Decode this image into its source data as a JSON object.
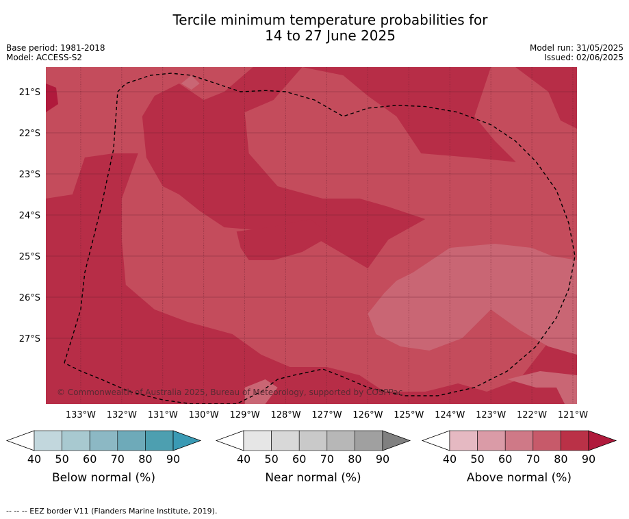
{
  "header": {
    "title_line1": "Tercile minimum temperature probabilities for",
    "title_line2": "14 to 27 June 2025",
    "base_period": "Base period: 1981-2018",
    "model": "Model: ACCESS-S2",
    "model_run": "Model run: 31/05/2025",
    "issued": "Issued: 02/06/2025"
  },
  "chart_data": {
    "type": "heatmap",
    "title": "Tercile minimum temperature probabilities for 14 to 27 June 2025",
    "x_ticks": [
      "133°W",
      "132°W",
      "131°W",
      "130°W",
      "129°W",
      "128°W",
      "127°W",
      "126°W",
      "125°W",
      "124°W",
      "123°W",
      "122°W",
      "121°W"
    ],
    "y_ticks": [
      "21°S",
      "22°S",
      "23°S",
      "24°S",
      "25°S",
      "26°S",
      "27°S"
    ],
    "xlim": [
      -133.85,
      -120.9
    ],
    "ylim": [
      -28.6,
      -20.4
    ],
    "levels_shown": [
      60,
      70,
      80,
      90
    ],
    "copyright": "© Commonwealth of Australia 2025, Bureau of Meteorology, supported by COSPPac",
    "eez_border": [
      [
        -133.4,
        -27.6
      ],
      [
        -133.0,
        -26.3
      ],
      [
        -132.9,
        -25.4
      ],
      [
        -132.5,
        -23.8
      ],
      [
        -132.2,
        -22.4
      ],
      [
        -132.1,
        -21.0
      ],
      [
        -131.9,
        -20.8
      ],
      [
        -131.3,
        -20.6
      ],
      [
        -130.8,
        -20.55
      ],
      [
        -130.3,
        -20.6
      ],
      [
        -129.7,
        -20.8
      ],
      [
        -129.1,
        -21.0
      ],
      [
        -128.5,
        -20.97
      ],
      [
        -128.0,
        -21.0
      ],
      [
        -127.3,
        -21.2
      ],
      [
        -126.6,
        -21.6
      ],
      [
        -126.0,
        -21.4
      ],
      [
        -125.3,
        -21.33
      ],
      [
        -124.6,
        -21.36
      ],
      [
        -123.8,
        -21.5
      ],
      [
        -123.0,
        -21.8
      ],
      [
        -122.4,
        -22.2
      ],
      [
        -121.9,
        -22.7
      ],
      [
        -121.4,
        -23.4
      ],
      [
        -121.1,
        -24.2
      ],
      [
        -120.95,
        -25.0
      ],
      [
        -121.1,
        -25.8
      ],
      [
        -121.4,
        -26.5
      ],
      [
        -121.9,
        -27.2
      ],
      [
        -122.6,
        -27.8
      ],
      [
        -123.4,
        -28.2
      ],
      [
        -124.3,
        -28.4
      ],
      [
        -125.1,
        -28.4
      ],
      [
        -126.0,
        -28.2
      ],
      [
        -126.7,
        -27.9
      ],
      [
        -127.1,
        -27.75
      ],
      [
        -127.8,
        -27.9
      ],
      [
        -128.2,
        -28.0
      ],
      [
        -128.6,
        -28.3
      ],
      [
        -129.2,
        -28.6
      ],
      [
        -129.8,
        -28.6
      ],
      [
        -130.3,
        -28.6
      ],
      [
        -131.0,
        -28.5
      ],
      [
        -131.8,
        -28.3
      ],
      [
        -132.5,
        -28.0
      ],
      [
        -133.0,
        -27.8
      ],
      [
        -133.4,
        -27.6
      ]
    ],
    "regions": [
      {
        "level": 70,
        "points": [
          [
            -133.85,
            -23.6
          ],
          [
            -133.2,
            -23.5
          ],
          [
            -132.9,
            -22.6
          ],
          [
            -132.2,
            -22.5
          ],
          [
            -131.6,
            -22.5
          ],
          [
            -132.0,
            -23.6
          ],
          [
            -132.0,
            -24.6
          ],
          [
            -131.9,
            -25.7
          ],
          [
            -131.2,
            -26.3
          ],
          [
            -130.4,
            -26.6
          ],
          [
            -129.3,
            -26.9
          ],
          [
            -128.6,
            -27.4
          ],
          [
            -127.9,
            -27.7
          ],
          [
            -127.0,
            -27.7
          ],
          [
            -126.2,
            -27.9
          ],
          [
            -125.6,
            -28.3
          ],
          [
            -124.6,
            -28.3
          ],
          [
            -123.8,
            -28.1
          ],
          [
            -123.1,
            -28.3
          ],
          [
            -122.3,
            -28.0
          ],
          [
            -121.6,
            -27.1
          ],
          [
            -120.9,
            -27.0
          ],
          [
            -120.9,
            -23.0
          ],
          [
            -121.5,
            -22.8
          ],
          [
            -122.5,
            -22.7
          ],
          [
            -123.5,
            -22.6
          ],
          [
            -124.7,
            -22.5
          ],
          [
            -125.3,
            -21.6
          ],
          [
            -126.0,
            -21.1
          ],
          [
            -126.6,
            -20.6
          ],
          [
            -127.6,
            -20.4
          ],
          [
            -128.3,
            -21.2
          ],
          [
            -129.0,
            -21.5
          ],
          [
            -128.9,
            -22.5
          ],
          [
            -128.2,
            -23.3
          ],
          [
            -127.1,
            -23.6
          ],
          [
            -126.2,
            -23.6
          ],
          [
            -125.5,
            -23.8
          ],
          [
            -124.6,
            -24.1
          ],
          [
            -125.5,
            -24.6
          ],
          [
            -126.0,
            -25.3
          ],
          [
            -127.2,
            -24.6
          ],
          [
            -128.3,
            -24.4
          ],
          [
            -129.5,
            -24.3
          ],
          [
            -130.1,
            -23.9
          ],
          [
            -130.6,
            -23.5
          ],
          [
            -131.0,
            -23.3
          ],
          [
            -131.4,
            -22.6
          ],
          [
            -131.5,
            -21.6
          ],
          [
            -131.2,
            -21.1
          ],
          [
            -130.6,
            -20.8
          ],
          [
            -130.0,
            -21.2
          ],
          [
            -129.5,
            -21.0
          ],
          [
            -128.8,
            -20.4
          ],
          [
            -133.85,
            -20.4
          ]
        ]
      },
      {
        "level": 70,
        "points": [
          [
            -123.0,
            -20.4
          ],
          [
            -122.4,
            -20.4
          ],
          [
            -121.6,
            -21.0
          ],
          [
            -121.3,
            -21.7
          ],
          [
            -120.9,
            -21.9
          ],
          [
            -120.9,
            -23.5
          ],
          [
            -121.8,
            -23.5
          ],
          [
            -122.3,
            -22.8
          ],
          [
            -122.9,
            -22.2
          ],
          [
            -123.4,
            -21.6
          ],
          [
            -123.2,
            -21.0
          ]
        ]
      },
      {
        "level": 60,
        "points": [
          [
            -124.9,
            -25.4
          ],
          [
            -124.0,
            -24.8
          ],
          [
            -122.9,
            -24.7
          ],
          [
            -122.0,
            -24.8
          ],
          [
            -121.5,
            -25.0
          ],
          [
            -120.9,
            -25.1
          ],
          [
            -120.9,
            -27.4
          ],
          [
            -121.6,
            -27.2
          ],
          [
            -122.3,
            -26.8
          ],
          [
            -123.0,
            -26.3
          ],
          [
            -123.7,
            -27.0
          ],
          [
            -124.5,
            -27.3
          ],
          [
            -125.2,
            -27.2
          ],
          [
            -125.8,
            -26.9
          ],
          [
            -126.0,
            -26.4
          ],
          [
            -125.6,
            -25.9
          ],
          [
            -125.3,
            -25.6
          ]
        ]
      },
      {
        "level": 60,
        "points": [
          [
            -129.0,
            -28.2
          ],
          [
            -128.5,
            -28.0
          ],
          [
            -128.2,
            -28.2
          ],
          [
            -128.5,
            -28.6
          ],
          [
            -129.0,
            -28.6
          ]
        ]
      },
      {
        "level": 60,
        "points": [
          [
            -121.2,
            -28.6
          ],
          [
            -121.4,
            -28.2
          ],
          [
            -121.9,
            -28.2
          ],
          [
            -122.6,
            -28.0
          ],
          [
            -121.8,
            -27.8
          ],
          [
            -120.9,
            -27.9
          ],
          [
            -120.9,
            -28.6
          ]
        ]
      },
      {
        "level": 60,
        "points": [
          [
            -130.55,
            -20.8
          ],
          [
            -130.3,
            -20.6
          ],
          [
            -130.1,
            -20.8
          ],
          [
            -130.3,
            -20.95
          ]
        ]
      },
      {
        "level": 80,
        "points": [
          [
            -129.2,
            -24.4
          ],
          [
            -128.4,
            -24.3
          ],
          [
            -127.4,
            -24.1
          ],
          [
            -126.9,
            -24.5
          ],
          [
            -127.6,
            -24.9
          ],
          [
            -128.3,
            -25.1
          ],
          [
            -128.9,
            -25.1
          ],
          [
            -129.1,
            -24.8
          ]
        ]
      },
      {
        "level": 90,
        "points": [
          [
            -133.85,
            -20.8
          ],
          [
            -133.6,
            -20.9
          ],
          [
            -133.55,
            -21.3
          ],
          [
            -133.85,
            -21.5
          ]
        ]
      }
    ],
    "colorbars": [
      {
        "label": "Below normal (%)",
        "ticks": [
          40,
          50,
          60,
          70,
          80,
          90
        ],
        "colors": [
          "#c2d7dd",
          "#a8c9d0",
          "#8cb8c4",
          "#6eaab9",
          "#4d9fb0"
        ],
        "extend_low": "#ffffff",
        "extend_high": "#3a9ab4"
      },
      {
        "label": "Near normal (%)",
        "ticks": [
          40,
          50,
          60,
          70,
          80,
          90
        ],
        "colors": [
          "#e6e6e6",
          "#d8d8d8",
          "#c9c9c9",
          "#b7b7b7",
          "#a0a0a0"
        ],
        "extend_low": "#ffffff",
        "extend_high": "#808080"
      },
      {
        "label": "Above normal (%)",
        "ticks": [
          40,
          50,
          60,
          70,
          80,
          90
        ],
        "colors": [
          "#e5b9c2",
          "#da9ba7",
          "#cf7987",
          "#c75a6a",
          "#ba3147"
        ],
        "extend_low": "#ffffff",
        "extend_high": "#b01a3c"
      }
    ],
    "fill_colors": {
      "60": "#c96674",
      "70": "#c44c5c",
      "80": "#b72d47",
      "90": "#b01a3c"
    },
    "footer": "-- -- -- EEZ border V11 (Flanders Marine Institute, 2019)."
  }
}
